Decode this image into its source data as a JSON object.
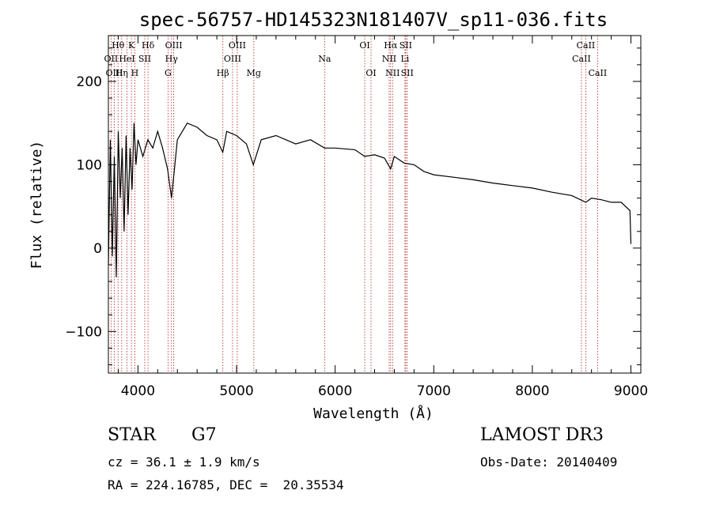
{
  "chart_data": {
    "type": "line",
    "title": "spec-56757-HD145323N181407V_sp11-036.fits",
    "xlabel": "Wavelength (Å)",
    "ylabel": "Flux (relative)",
    "xlim": [
      3700,
      9100
    ],
    "ylim": [
      -150,
      255
    ],
    "x_ticks": [
      4000,
      5000,
      6000,
      7000,
      8000,
      9000
    ],
    "y_ticks": [
      -100,
      0,
      100,
      200
    ],
    "grid": false,
    "series": [
      {
        "name": "spectrum",
        "x": [
          3700,
          3720,
          3740,
          3760,
          3780,
          3800,
          3820,
          3840,
          3860,
          3880,
          3900,
          3920,
          3940,
          3960,
          3980,
          4000,
          4050,
          4100,
          4150,
          4200,
          4250,
          4300,
          4340,
          4400,
          4450,
          4500,
          4600,
          4700,
          4800,
          4860,
          4900,
          5000,
          5100,
          5170,
          5250,
          5400,
          5600,
          5750,
          5893,
          6000,
          6200,
          6300,
          6400,
          6500,
          6563,
          6600,
          6700,
          6800,
          6900,
          7000,
          7200,
          7400,
          7600,
          7800,
          8000,
          8200,
          8400,
          8542,
          8600,
          8700,
          8800,
          8900,
          8990,
          9000
        ],
        "y": [
          -20,
          130,
          -10,
          110,
          -35,
          140,
          60,
          120,
          20,
          135,
          40,
          120,
          70,
          150,
          100,
          130,
          110,
          130,
          120,
          140,
          120,
          95,
          60,
          130,
          140,
          150,
          145,
          135,
          130,
          115,
          140,
          135,
          125,
          100,
          130,
          135,
          125,
          130,
          120,
          120,
          118,
          110,
          112,
          108,
          95,
          110,
          102,
          100,
          92,
          88,
          85,
          82,
          78,
          75,
          72,
          67,
          63,
          55,
          60,
          58,
          55,
          55,
          45,
          5
        ]
      }
    ],
    "line_labels": [
      {
        "text": "Hθ",
        "wave": 3798,
        "row": 1
      },
      {
        "text": "OII",
        "wave": 3727,
        "row": 2
      },
      {
        "text": "OIII",
        "wave": 3760,
        "row": 3
      },
      {
        "text": "K",
        "wave": 3934,
        "row": 1
      },
      {
        "text": "HeI",
        "wave": 3889,
        "row": 2
      },
      {
        "text": "Hη",
        "wave": 3835,
        "row": 3
      },
      {
        "text": "Hδ",
        "wave": 4102,
        "row": 1
      },
      {
        "text": "SII",
        "wave": 4069,
        "row": 2
      },
      {
        "text": "H",
        "wave": 3968,
        "row": 3
      },
      {
        "text": "OIII",
        "wave": 4363,
        "row": 1
      },
      {
        "text": "Hγ",
        "wave": 4340,
        "row": 2
      },
      {
        "text": "G",
        "wave": 4305,
        "row": 3
      },
      {
        "text": "OIII",
        "wave": 5007,
        "row": 1
      },
      {
        "text": "OIII",
        "wave": 4959,
        "row": 2
      },
      {
        "text": "Hβ",
        "wave": 4861,
        "row": 3
      },
      {
        "text": "Mg",
        "wave": 5175,
        "row": 3
      },
      {
        "text": "Na",
        "wave": 5893,
        "row": 2
      },
      {
        "text": "OI",
        "wave": 6300,
        "row": 1
      },
      {
        "text": "OI",
        "wave": 6364,
        "row": 3
      },
      {
        "text": "Hα",
        "wave": 6563,
        "row": 1
      },
      {
        "text": "SII",
        "wave": 6716,
        "row": 1
      },
      {
        "text": "NII",
        "wave": 6548,
        "row": 2
      },
      {
        "text": "Li",
        "wave": 6708,
        "row": 2
      },
      {
        "text": "NII",
        "wave": 6583,
        "row": 3
      },
      {
        "text": "SII",
        "wave": 6731,
        "row": 3
      },
      {
        "text": "CaII",
        "wave": 8542,
        "row": 1
      },
      {
        "text": "CaII",
        "wave": 8498,
        "row": 2
      },
      {
        "text": "CaII",
        "wave": 8662,
        "row": 3
      }
    ],
    "line_waves": [
      3727,
      3760,
      3798,
      3835,
      3889,
      3934,
      3968,
      4069,
      4102,
      4305,
      4340,
      4363,
      4861,
      4959,
      5007,
      5175,
      5893,
      6300,
      6364,
      6548,
      6563,
      6583,
      6708,
      6716,
      6731,
      8498,
      8542,
      8662
    ]
  },
  "info": {
    "object_class": "STAR",
    "subclass": "G7",
    "cz": "cz = 36.1 ± 1.9 km/s",
    "coords": "RA = 224.16785, DEC =  20.35534",
    "survey": "LAMOST DR3",
    "obs_date": "Obs-Date: 20140409"
  }
}
